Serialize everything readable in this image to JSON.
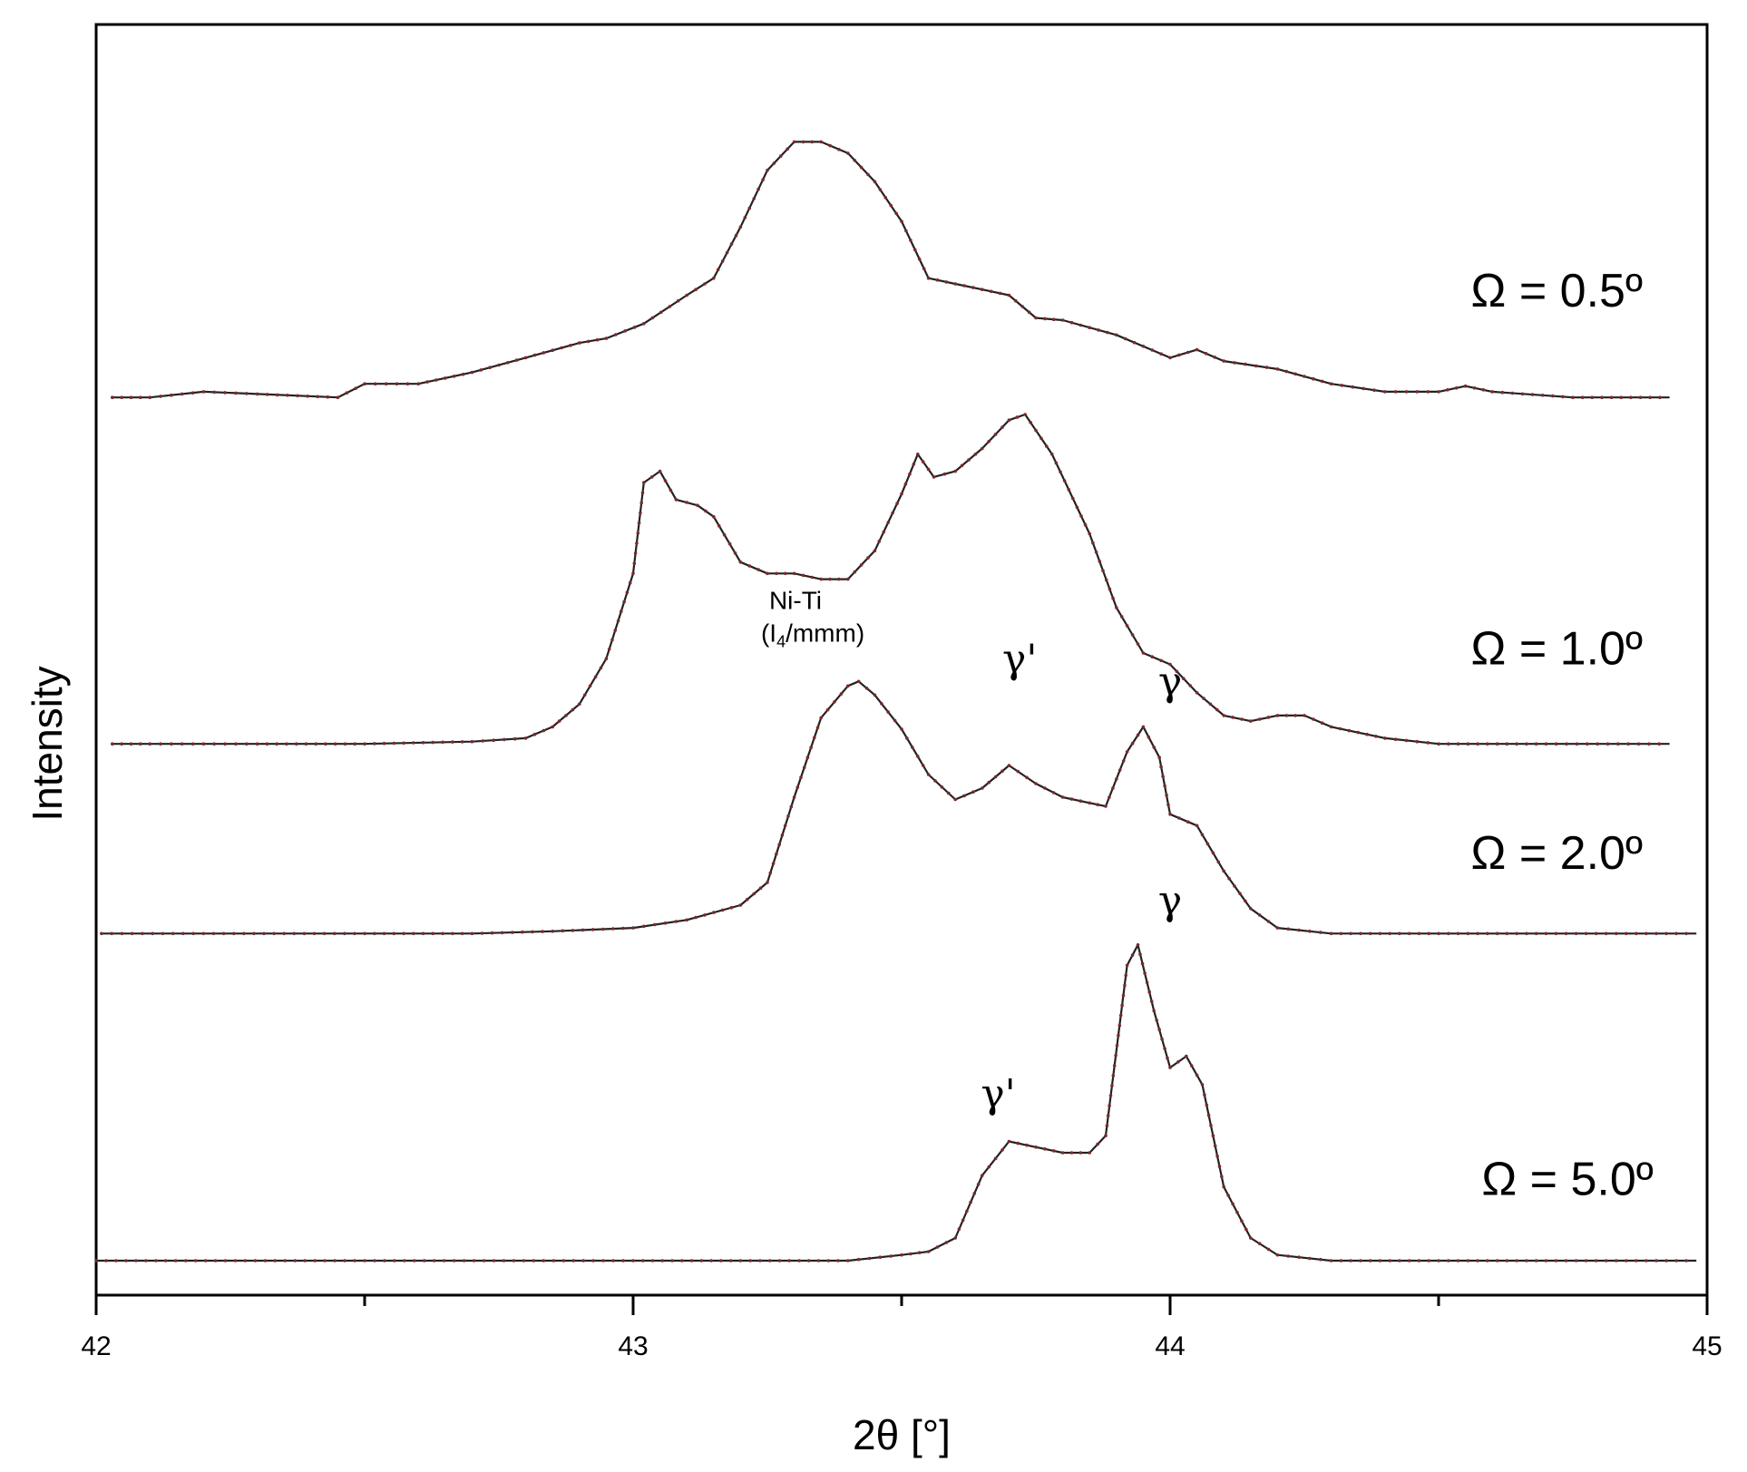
{
  "chart_data": {
    "type": "line",
    "xlabel": "2θ [°]",
    "ylabel": "Intensity",
    "xlim": [
      42,
      45
    ],
    "ylim": [
      0,
      10.5
    ],
    "x_ticks": [
      42,
      43,
      44,
      45
    ],
    "x_minor_ticks": [
      42.5,
      43.5,
      44.5
    ],
    "grid": false,
    "y_ticks_shown": false,
    "series": [
      {
        "name": "Ω = 0.5º",
        "offset": 7.6,
        "points": [
          [
            42.03,
            0.0
          ],
          [
            42.1,
            0.0
          ],
          [
            42.2,
            0.05
          ],
          [
            42.3,
            0.03
          ],
          [
            42.45,
            0.0
          ],
          [
            42.5,
            0.12
          ],
          [
            42.6,
            0.12
          ],
          [
            42.7,
            0.22
          ],
          [
            42.8,
            0.35
          ],
          [
            42.9,
            0.48
          ],
          [
            42.95,
            0.52
          ],
          [
            43.02,
            0.65
          ],
          [
            43.1,
            0.9
          ],
          [
            43.15,
            1.05
          ],
          [
            43.2,
            1.5
          ],
          [
            43.25,
            2.0
          ],
          [
            43.3,
            2.25
          ],
          [
            43.35,
            2.25
          ],
          [
            43.4,
            2.15
          ],
          [
            43.45,
            1.9
          ],
          [
            43.5,
            1.55
          ],
          [
            43.55,
            1.05
          ],
          [
            43.6,
            1.0
          ],
          [
            43.65,
            0.95
          ],
          [
            43.7,
            0.9
          ],
          [
            43.75,
            0.7
          ],
          [
            43.8,
            0.68
          ],
          [
            43.9,
            0.55
          ],
          [
            44.0,
            0.35
          ],
          [
            44.05,
            0.42
          ],
          [
            44.1,
            0.32
          ],
          [
            44.2,
            0.25
          ],
          [
            44.3,
            0.12
          ],
          [
            44.4,
            0.05
          ],
          [
            44.5,
            0.05
          ],
          [
            44.55,
            0.1
          ],
          [
            44.6,
            0.05
          ],
          [
            44.75,
            0.0
          ],
          [
            44.93,
            0.0
          ]
        ]
      },
      {
        "name": "Ω = 1.0º",
        "offset": 4.55,
        "points": [
          [
            42.03,
            0.0
          ],
          [
            42.1,
            0.0
          ],
          [
            42.2,
            0.0
          ],
          [
            42.3,
            0.0
          ],
          [
            42.5,
            0.0
          ],
          [
            42.7,
            0.02
          ],
          [
            42.8,
            0.05
          ],
          [
            42.85,
            0.15
          ],
          [
            42.9,
            0.35
          ],
          [
            42.95,
            0.75
          ],
          [
            43.0,
            1.5
          ],
          [
            43.02,
            2.3
          ],
          [
            43.05,
            2.4
          ],
          [
            43.08,
            2.15
          ],
          [
            43.12,
            2.1
          ],
          [
            43.15,
            2.0
          ],
          [
            43.2,
            1.6
          ],
          [
            43.25,
            1.5
          ],
          [
            43.3,
            1.5
          ],
          [
            43.35,
            1.45
          ],
          [
            43.4,
            1.45
          ],
          [
            43.45,
            1.7
          ],
          [
            43.5,
            2.2
          ],
          [
            43.53,
            2.55
          ],
          [
            43.56,
            2.35
          ],
          [
            43.6,
            2.4
          ],
          [
            43.65,
            2.6
          ],
          [
            43.7,
            2.85
          ],
          [
            43.73,
            2.9
          ],
          [
            43.78,
            2.55
          ],
          [
            43.85,
            1.85
          ],
          [
            43.9,
            1.2
          ],
          [
            43.95,
            0.8
          ],
          [
            44.0,
            0.7
          ],
          [
            44.05,
            0.45
          ],
          [
            44.1,
            0.25
          ],
          [
            44.15,
            0.2
          ],
          [
            44.2,
            0.25
          ],
          [
            44.25,
            0.25
          ],
          [
            44.3,
            0.15
          ],
          [
            44.4,
            0.05
          ],
          [
            44.5,
            0.0
          ],
          [
            44.7,
            0.0
          ],
          [
            44.93,
            0.0
          ]
        ]
      },
      {
        "name": "Ω = 2.0º",
        "offset": 2.88,
        "points": [
          [
            42.01,
            0.0
          ],
          [
            42.2,
            0.0
          ],
          [
            42.5,
            0.0
          ],
          [
            42.7,
            0.0
          ],
          [
            42.85,
            0.02
          ],
          [
            43.0,
            0.05
          ],
          [
            43.1,
            0.12
          ],
          [
            43.2,
            0.25
          ],
          [
            43.25,
            0.45
          ],
          [
            43.3,
            1.2
          ],
          [
            43.35,
            1.9
          ],
          [
            43.4,
            2.18
          ],
          [
            43.42,
            2.22
          ],
          [
            43.45,
            2.1
          ],
          [
            43.5,
            1.8
          ],
          [
            43.55,
            1.4
          ],
          [
            43.6,
            1.18
          ],
          [
            43.65,
            1.28
          ],
          [
            43.7,
            1.48
          ],
          [
            43.75,
            1.32
          ],
          [
            43.8,
            1.2
          ],
          [
            43.85,
            1.15
          ],
          [
            43.88,
            1.12
          ],
          [
            43.92,
            1.6
          ],
          [
            43.95,
            1.82
          ],
          [
            43.98,
            1.55
          ],
          [
            44.0,
            1.05
          ],
          [
            44.05,
            0.95
          ],
          [
            44.1,
            0.55
          ],
          [
            44.15,
            0.22
          ],
          [
            44.2,
            0.05
          ],
          [
            44.3,
            0.0
          ],
          [
            44.5,
            0.0
          ],
          [
            44.7,
            0.0
          ],
          [
            44.98,
            0.0
          ]
        ]
      },
      {
        "name": "Ω = 5.0º",
        "offset": 0.0,
        "points": [
          [
            42.0,
            0.0
          ],
          [
            42.5,
            0.0
          ],
          [
            43.0,
            0.0
          ],
          [
            43.4,
            0.0
          ],
          [
            43.5,
            0.05
          ],
          [
            43.55,
            0.08
          ],
          [
            43.6,
            0.2
          ],
          [
            43.65,
            0.75
          ],
          [
            43.7,
            1.05
          ],
          [
            43.75,
            1.0
          ],
          [
            43.8,
            0.95
          ],
          [
            43.85,
            0.95
          ],
          [
            43.88,
            1.1
          ],
          [
            43.92,
            2.6
          ],
          [
            43.94,
            2.78
          ],
          [
            43.97,
            2.2
          ],
          [
            44.0,
            1.7
          ],
          [
            44.03,
            1.8
          ],
          [
            44.06,
            1.55
          ],
          [
            44.1,
            0.65
          ],
          [
            44.15,
            0.2
          ],
          [
            44.2,
            0.05
          ],
          [
            44.3,
            0.0
          ],
          [
            44.5,
            0.0
          ],
          [
            44.7,
            0.0
          ],
          [
            44.98,
            0.0
          ]
        ]
      }
    ],
    "annotations": [
      {
        "kind": "phase",
        "line1": "Ni-Ti",
        "line2": "(I",
        "sub": "4",
        "line2_rest": "/mmm)",
        "x": 43.38,
        "y": 5.45
      },
      {
        "kind": "peak",
        "text": "γ'",
        "x": 43.72,
        "y": 5.18
      },
      {
        "kind": "peak",
        "text": "γ",
        "x": 44.0,
        "y": 4.98
      },
      {
        "kind": "peak",
        "text": "γ",
        "x": 44.0,
        "y": 3.05
      },
      {
        "kind": "peak",
        "text": "γ'",
        "x": 43.68,
        "y": 1.35
      }
    ],
    "series_labels": [
      {
        "series": 0,
        "x": 44.56,
        "y": 8.4
      },
      {
        "series": 1,
        "x": 44.56,
        "y": 5.25
      },
      {
        "series": 2,
        "x": 44.56,
        "y": 3.45
      },
      {
        "series": 3,
        "x": 44.58,
        "y": 0.58
      }
    ]
  }
}
